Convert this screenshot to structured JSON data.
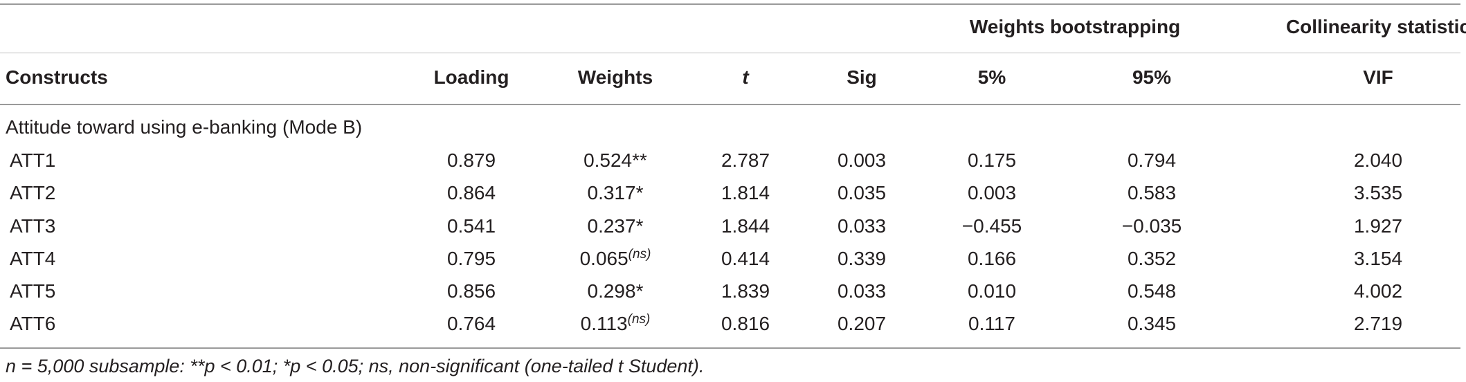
{
  "table": {
    "group_headers": {
      "weights_bootstrapping": "Weights bootstrapping",
      "collinearity_statistic": "Collinearity statistic"
    },
    "columns": [
      "Constructs",
      "Loading",
      "Weights",
      "t",
      "Sig",
      "5%",
      "95%",
      "VIF"
    ],
    "section_label": "Attitude toward using e-banking (Mode B)",
    "rows": [
      {
        "construct": "ATT1",
        "loading": "0.879",
        "weight": "0.524",
        "weight_mark": "**",
        "weight_sup": "",
        "t": "2.787",
        "sig": "0.003",
        "p5": "0.175",
        "p95": "0.794",
        "vif": "2.040"
      },
      {
        "construct": "ATT2",
        "loading": "0.864",
        "weight": "0.317",
        "weight_mark": "*",
        "weight_sup": "",
        "t": "1.814",
        "sig": "0.035",
        "p5": "0.003",
        "p95": "0.583",
        "vif": "3.535"
      },
      {
        "construct": "ATT3",
        "loading": "0.541",
        "weight": "0.237",
        "weight_mark": "*",
        "weight_sup": "",
        "t": "1.844",
        "sig": "0.033",
        "p5": "−0.455",
        "p95": "−0.035",
        "vif": "1.927"
      },
      {
        "construct": "ATT4",
        "loading": "0.795",
        "weight": "0.065",
        "weight_mark": "",
        "weight_sup": "(ns)",
        "t": "0.414",
        "sig": "0.339",
        "p5": "0.166",
        "p95": "0.352",
        "vif": "3.154"
      },
      {
        "construct": "ATT5",
        "loading": "0.856",
        "weight": "0.298",
        "weight_mark": "*",
        "weight_sup": "",
        "t": "1.839",
        "sig": "0.033",
        "p5": "0.010",
        "p95": "0.548",
        "vif": "4.002"
      },
      {
        "construct": "ATT6",
        "loading": "0.764",
        "weight": "0.113",
        "weight_mark": "",
        "weight_sup": "(ns)",
        "t": "0.816",
        "sig": "0.207",
        "p5": "0.117",
        "p95": "0.345",
        "vif": "2.719"
      }
    ],
    "footnote": "n = 5,000 subsample: **p < 0.01; *p < 0.05; ns, non-significant (one-tailed t Student)."
  }
}
